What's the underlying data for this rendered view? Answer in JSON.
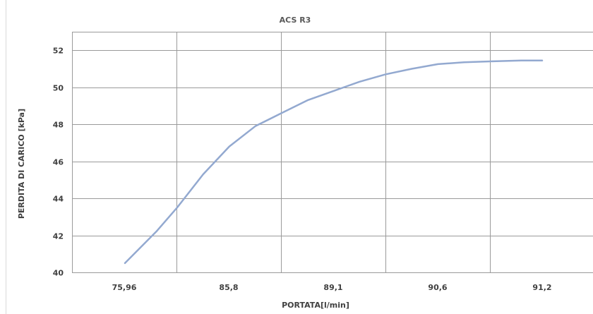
{
  "chart_data": {
    "type": "line",
    "title": "ACS R3",
    "xlabel": "PORTATA[l/min]",
    "ylabel": "PERDITA DI CARICO [kPa]",
    "x_tick_labels": [
      "75,96",
      "85,8",
      "89,1",
      "90,6",
      "91,2"
    ],
    "y_ticks": [
      40,
      42,
      44,
      46,
      48,
      50,
      52
    ],
    "ylim": [
      40,
      53
    ],
    "grid": true,
    "legend": "none",
    "series_color": "#93a9d0",
    "series": [
      {
        "points": [
          {
            "x": 0.0,
            "y": 40.5
          },
          {
            "x": 0.6,
            "y": 42.2
          },
          {
            "x": 1.0,
            "y": 43.5
          },
          {
            "x": 1.5,
            "y": 45.3
          },
          {
            "x": 2.0,
            "y": 46.8
          },
          {
            "x": 2.5,
            "y": 47.9
          },
          {
            "x": 3.0,
            "y": 48.6
          },
          {
            "x": 3.5,
            "y": 49.3
          },
          {
            "x": 4.0,
            "y": 49.8
          },
          {
            "x": 4.5,
            "y": 50.3
          },
          {
            "x": 5.0,
            "y": 50.7
          },
          {
            "x": 5.5,
            "y": 51.0
          },
          {
            "x": 6.0,
            "y": 51.25
          },
          {
            "x": 6.5,
            "y": 51.35
          },
          {
            "x": 7.0,
            "y": 51.4
          },
          {
            "x": 7.6,
            "y": 51.45
          },
          {
            "x": 8.0,
            "y": 51.45
          }
        ]
      }
    ]
  }
}
